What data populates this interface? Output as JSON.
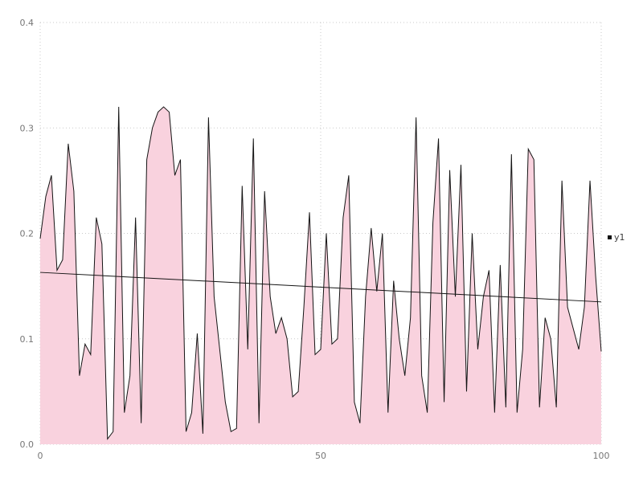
{
  "chart_data": {
    "type": "area",
    "title": "",
    "xlabel": "",
    "ylabel": "",
    "xlim": [
      0,
      100
    ],
    "ylim": [
      0,
      0.4
    ],
    "xticks": [
      0,
      50,
      100
    ],
    "yticks": [
      0,
      0.1,
      0.2,
      0.3,
      0.4
    ],
    "grid": "dotted",
    "legend_position": "right",
    "x": [
      0,
      1,
      2,
      3,
      4,
      5,
      6,
      7,
      8,
      9,
      10,
      11,
      12,
      13,
      14,
      15,
      16,
      17,
      18,
      19,
      20,
      21,
      22,
      23,
      24,
      25,
      26,
      27,
      28,
      29,
      30,
      31,
      32,
      33,
      34,
      35,
      36,
      37,
      38,
      39,
      40,
      41,
      42,
      43,
      44,
      45,
      46,
      47,
      48,
      49,
      50,
      51,
      52,
      53,
      54,
      55,
      56,
      57,
      58,
      59,
      60,
      61,
      62,
      63,
      64,
      65,
      66,
      67,
      68,
      69,
      70,
      71,
      72,
      73,
      74,
      75,
      76,
      77,
      78,
      79,
      80,
      81,
      82,
      83,
      84,
      85,
      86,
      87,
      88,
      89,
      90,
      91,
      92,
      93,
      94,
      95,
      96,
      97,
      98,
      99,
      100
    ],
    "series": [
      {
        "name": "y1",
        "values": [
          0.195,
          0.235,
          0.255,
          0.165,
          0.175,
          0.285,
          0.24,
          0.065,
          0.095,
          0.085,
          0.215,
          0.19,
          0.005,
          0.012,
          0.32,
          0.03,
          0.065,
          0.215,
          0.02,
          0.27,
          0.3,
          0.315,
          0.32,
          0.315,
          0.255,
          0.27,
          0.012,
          0.03,
          0.105,
          0.01,
          0.31,
          0.14,
          0.09,
          0.04,
          0.012,
          0.015,
          0.245,
          0.09,
          0.29,
          0.02,
          0.24,
          0.14,
          0.105,
          0.12,
          0.1,
          0.045,
          0.05,
          0.13,
          0.22,
          0.085,
          0.09,
          0.2,
          0.095,
          0.1,
          0.215,
          0.255,
          0.04,
          0.02,
          0.14,
          0.205,
          0.145,
          0.2,
          0.03,
          0.155,
          0.1,
          0.065,
          0.12,
          0.31,
          0.065,
          0.03,
          0.21,
          0.29,
          0.04,
          0.26,
          0.14,
          0.265,
          0.05,
          0.2,
          0.09,
          0.14,
          0.165,
          0.03,
          0.17,
          0.035,
          0.275,
          0.03,
          0.09,
          0.28,
          0.27,
          0.035,
          0.12,
          0.1,
          0.035,
          0.25,
          0.13,
          0.11,
          0.09,
          0.13,
          0.25,
          0.16,
          0.088
        ]
      }
    ],
    "trend_line": {
      "x_start": 0,
      "y_start": 0.163,
      "x_end": 100,
      "y_end": 0.135
    },
    "colors": {
      "area_fill": "#f9d2de",
      "line": "#141414",
      "trend": "#141414",
      "grid": "#c9c9c9",
      "tick_text": "#767676",
      "legend_marker": "#111111",
      "background": "#ffffff"
    }
  }
}
